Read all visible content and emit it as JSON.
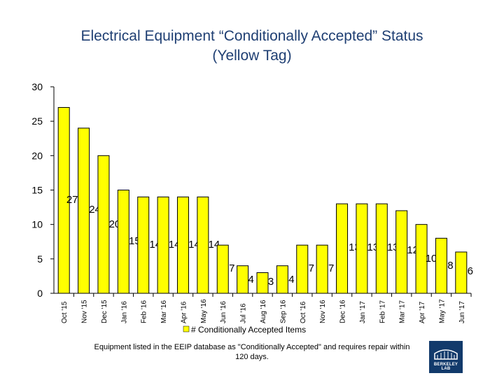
{
  "title_lines": [
    "Electrical Equipment “Conditionally Accepted” Status",
    "(Yellow Tag)"
  ],
  "footnote": "Equipment listed in the EEIP database as \"Conditionally Accepted\" and requires repair within 120 days.",
  "logo_text": "BERKELEY LAB",
  "colors": {
    "title": "#1f3f73",
    "bar": "#ffff00",
    "bar_stroke": "#000000",
    "logo_bg": "#123a6b"
  },
  "chart_data": {
    "type": "bar",
    "title": "Electrical Equipment “Conditionally Accepted” Status (Yellow Tag)",
    "xlabel": "",
    "ylabel": "",
    "ylim": [
      0,
      30
    ],
    "yticks": [
      0,
      5,
      10,
      15,
      20,
      25,
      30
    ],
    "grid": false,
    "legend": "bottom",
    "categories": [
      "Oct '15",
      "Nov '15",
      "Dec '15",
      "Jan '16",
      "Feb '16",
      "Mar '16",
      "Apr '16",
      "May '16",
      "Jun '16",
      "Jul '16",
      "Aug '16",
      "Sep '16",
      "Oct '16",
      "Nov '16",
      "Dec '16",
      "Jan '17",
      "Feb '17",
      "Mar '17",
      "Apr '17",
      "May '17",
      "Jun '17"
    ],
    "series": [
      {
        "name": "# Conditionally Accepted Items",
        "values": [
          27,
          24,
          20,
          15,
          14,
          14,
          14,
          14,
          7,
          4,
          3,
          4,
          7,
          7,
          13,
          13,
          13,
          12,
          10,
          8,
          6
        ]
      }
    ]
  }
}
